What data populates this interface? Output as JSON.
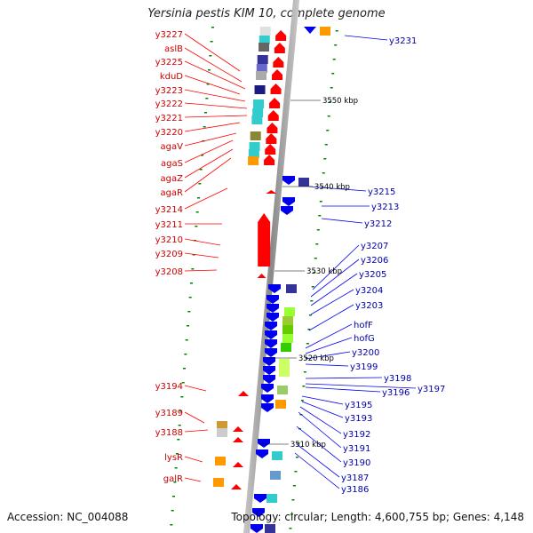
{
  "title": "Yersinia pestis KIM 10, complete genome",
  "accession": "Accession: NC_004088",
  "topology": "Topology: circular; Length: 4,600,755 bp; Genes: 4,148",
  "colors": {
    "forward": "#ff0000",
    "reverse": "#0000ee",
    "backbone": "#808080",
    "tick": "#008000",
    "label_forward": "#cc0000",
    "label_reverse": "#0000aa"
  },
  "scale_ticks": [
    "3550 kbp",
    "3540 kbp",
    "3530 kbp",
    "3520 kbp",
    "3510 kbp"
  ],
  "forward_labels": [
    "y3227",
    "aslB",
    "y3225",
    "kduD",
    "y3223",
    "y3222",
    "y3221",
    "y3220",
    "agaV",
    "agaS",
    "agaZ",
    "agaR",
    "y3214",
    "y3211",
    "y3210",
    "y3209",
    "y3208",
    "y3194",
    "y3189",
    "y3188",
    "lysR",
    "galR"
  ],
  "reverse_labels": [
    "y3231",
    "y3215",
    "y3213",
    "y3212",
    "y3207",
    "y3206",
    "y3205",
    "y3204",
    "y3203",
    "hofF",
    "hofG",
    "y3200",
    "y3199",
    "y3198",
    "y3197",
    "y3196",
    "y3195",
    "y3193",
    "y3192",
    "y3191",
    "y3190",
    "y3187",
    "y3186"
  ]
}
